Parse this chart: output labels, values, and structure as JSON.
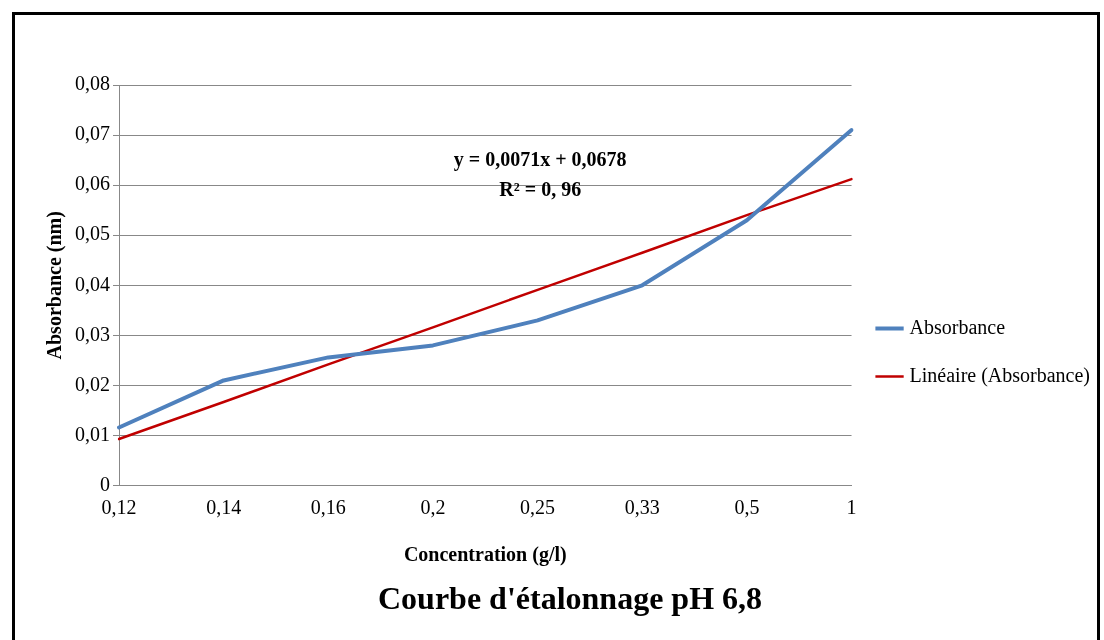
{
  "chart_data": {
    "type": "line",
    "title": "Courbe d'étalonnage pH 6,8",
    "xlabel": "Concentration (g/l)",
    "ylabel": "Absorbance (nm)",
    "categories": [
      "0,12",
      "0,14",
      "0,16",
      "0,2",
      "0,25",
      "0,33",
      "0,5",
      "1"
    ],
    "series": [
      {
        "name": "Absorbance",
        "color": "#4f81bd",
        "values": [
          0.0116,
          0.021,
          0.0256,
          0.028,
          0.033,
          0.04,
          0.053,
          0.071
        ]
      },
      {
        "name": "Linéaire (Absorbance)",
        "color": "#c00000",
        "values": [
          0.0093,
          0.0167,
          0.0242,
          0.0316,
          0.0391,
          0.0465,
          0.054,
          0.0612
        ]
      }
    ],
    "ylim": [
      0,
      0.08
    ],
    "yticks": [
      {
        "value": 0,
        "label": "0"
      },
      {
        "value": 0.01,
        "label": "0,01"
      },
      {
        "value": 0.02,
        "label": "0,02"
      },
      {
        "value": 0.03,
        "label": "0,03"
      },
      {
        "value": 0.04,
        "label": "0,04"
      },
      {
        "value": 0.05,
        "label": "0,05"
      },
      {
        "value": 0.06,
        "label": "0,06"
      },
      {
        "value": 0.07,
        "label": "0,07"
      },
      {
        "value": 0.08,
        "label": "0,08"
      }
    ],
    "grid": "y",
    "legend": "right",
    "marker": "none",
    "line_style": "solid",
    "annotations": [
      "y = 0,0071x + 0,0678",
      "R² = 0, 96"
    ]
  }
}
